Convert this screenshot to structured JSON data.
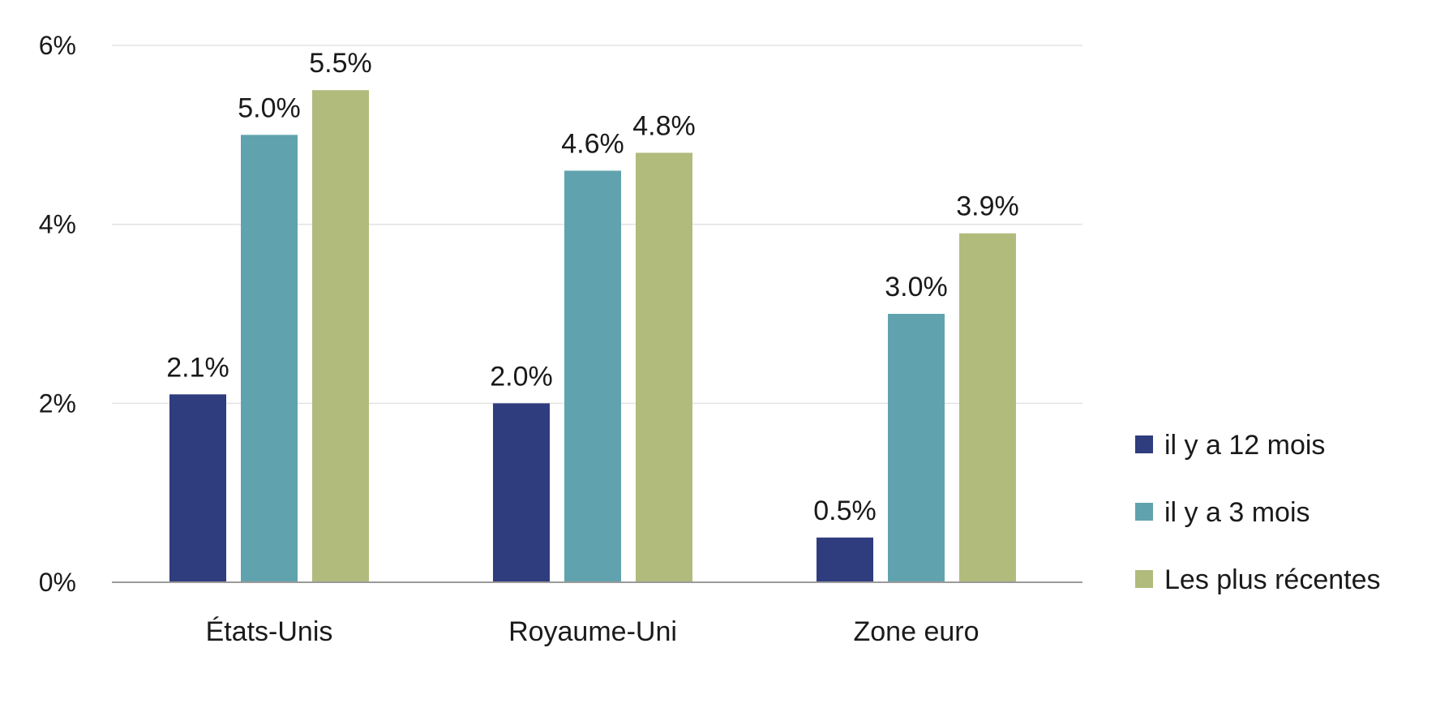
{
  "chart_data": {
    "type": "bar",
    "title": "",
    "xlabel": "",
    "ylabel": "",
    "categories": [
      "États-Unis",
      "Royaume-Uni",
      "Zone euro"
    ],
    "series": [
      {
        "name": "il y a 12 mois",
        "color": "#2f3c7e",
        "values": [
          2.1,
          2.0,
          0.5
        ],
        "labels": [
          "2.1%",
          "2.0%",
          "0.5%"
        ]
      },
      {
        "name": "il y a 3 mois",
        "color": "#60a3ae",
        "values": [
          5.0,
          4.6,
          3.0
        ],
        "labels": [
          "5.0%",
          "4.6%",
          "3.0%"
        ]
      },
      {
        "name": "Les plus récentes",
        "color": "#b1bb7c",
        "values": [
          5.5,
          4.8,
          3.9
        ],
        "labels": [
          "5.5%",
          "4.8%",
          "3.9%"
        ]
      }
    ],
    "ylim": [
      0,
      6
    ],
    "yticks": [
      0,
      2,
      4,
      6
    ],
    "ytick_labels": [
      "0%",
      "2%",
      "4%",
      "6%"
    ],
    "grid": true,
    "legend_position": "right"
  }
}
